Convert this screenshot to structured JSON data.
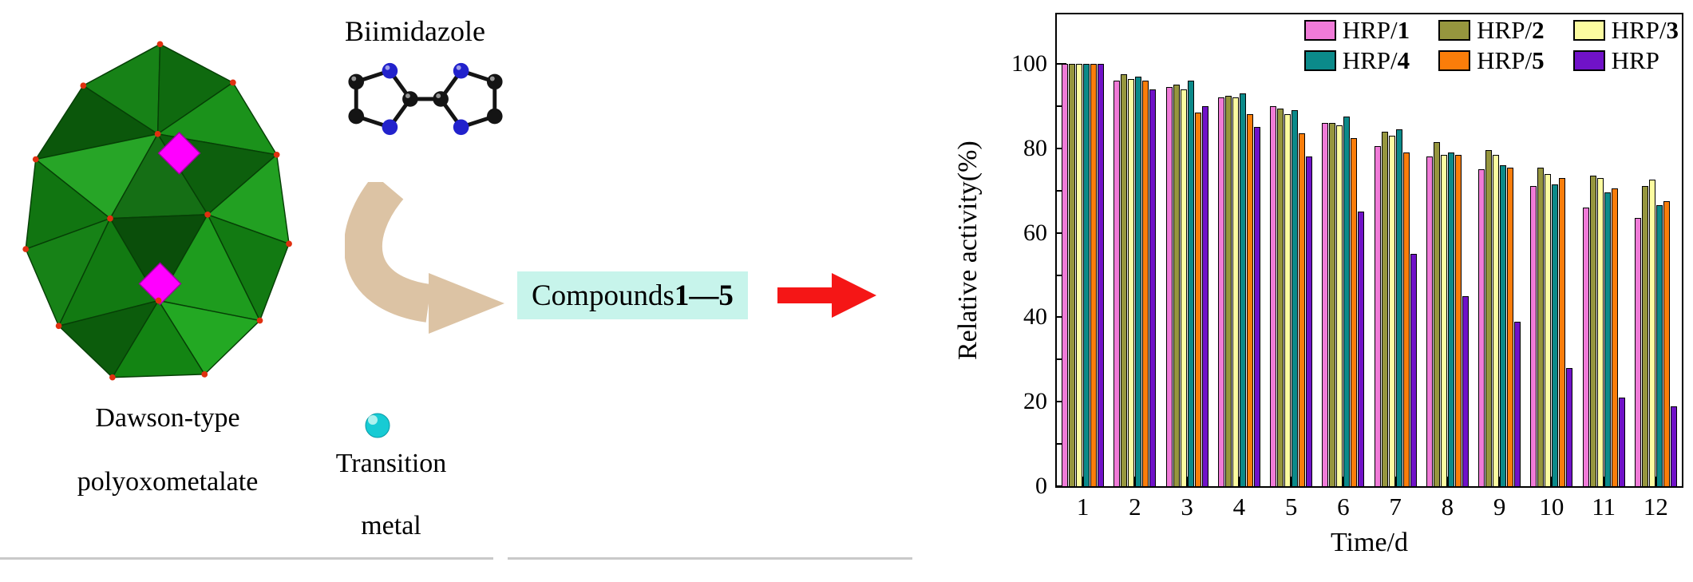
{
  "scheme": {
    "biimidazole_label": "Biimidazole",
    "dawson_label_line1": "Dawson-type",
    "dawson_label_line2": "polyoxometalate",
    "transition_label_line1": "Transition",
    "transition_label_line2": "metal",
    "compounds_prefix": "Compounds ",
    "compounds_range": "1—5",
    "compounds_box_color": "#C7F4EB",
    "scheme_arrow_color": "#DCC3A4",
    "red_arrow_color": "#F51616",
    "pom_diamond_color": "#FF00FF",
    "nitrogen_color": "#2222CC",
    "carbon_color": "#141414",
    "metal_sphere_color": "#17CBD4"
  },
  "chart_data": {
    "type": "bar",
    "title": "",
    "xlabel": "Time/d",
    "ylabel": "Relative activity(%)",
    "ylim": [
      0,
      111.5
    ],
    "yticks": [
      0,
      20,
      40,
      60,
      80,
      100
    ],
    "yticks_minor": [
      10,
      30,
      50,
      70,
      90
    ],
    "grid": false,
    "legend_position": "top-inside",
    "categories": [
      "1",
      "2",
      "3",
      "4",
      "5",
      "6",
      "7",
      "8",
      "9",
      "10",
      "11",
      "12"
    ],
    "series": [
      {
        "name": "HRP/1",
        "label_prefix": "HRP/",
        "label_bold": "1",
        "color": "#F07BD8",
        "values": [
          100,
          96,
          94.5,
          92,
          90,
          86,
          80.5,
          78,
          75,
          71,
          66,
          63.5
        ]
      },
      {
        "name": "HRP/2",
        "label_prefix": "HRP/",
        "label_bold": "2",
        "color": "#96963E",
        "values": [
          100,
          97.5,
          95,
          92.5,
          89.5,
          86,
          84,
          81.5,
          79.5,
          75.5,
          73.5,
          71
        ]
      },
      {
        "name": "HRP/3",
        "label_prefix": "HRP/",
        "label_bold": "3",
        "color": "#FCFCA0",
        "values": [
          100,
          96.5,
          94,
          92,
          88,
          85.5,
          83,
          78.5,
          78.5,
          74,
          73,
          72.5
        ]
      },
      {
        "name": "HRP/4",
        "label_prefix": "HRP/",
        "label_bold": "4",
        "color": "#0B8A8A",
        "values": [
          100,
          97,
          96,
          93,
          89,
          87.5,
          84.5,
          79,
          76,
          71.5,
          69.5,
          66.5
        ]
      },
      {
        "name": "HRP/5",
        "label_prefix": "HRP/",
        "label_bold": "5",
        "color": "#FA7D0A",
        "values": [
          100,
          96,
          88.5,
          88,
          83.5,
          82.5,
          79,
          78.5,
          75.5,
          73,
          70.5,
          67.5
        ]
      },
      {
        "name": "HRP",
        "label_prefix": "HRP",
        "label_bold": "",
        "color": "#7012C8",
        "values": [
          100,
          94,
          90,
          85,
          78,
          65,
          55,
          45,
          39,
          28,
          21,
          19
        ]
      }
    ]
  }
}
